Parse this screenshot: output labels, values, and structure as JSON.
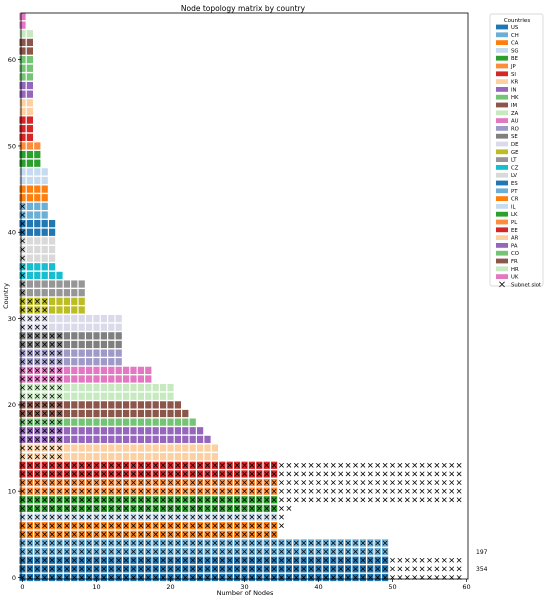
{
  "chart_data": {
    "type": "heatmap",
    "title": "Node topology matrix by country",
    "xlabel": "Number of Nodes",
    "ylabel": "Country",
    "xlim": [
      0,
      60
    ],
    "ylim": [
      0,
      65
    ],
    "xticks": [
      0,
      10,
      20,
      30,
      40,
      50,
      60
    ],
    "yticks": [
      0,
      10,
      20,
      30,
      40,
      50,
      60
    ],
    "grid": false,
    "legend": {
      "title": "Countries",
      "placement": "outside-right",
      "marker_label": "Subnet slot",
      "countries": [
        {
          "name": "US",
          "color": "#1f77b4"
        },
        {
          "name": "CH",
          "color": "#6baed6"
        },
        {
          "name": "CA",
          "color": "#ff7f0e"
        },
        {
          "name": "SG",
          "color": "#c6dbef"
        },
        {
          "name": "BE",
          "color": "#2ca02c"
        },
        {
          "name": "JP",
          "color": "#fd8d3c"
        },
        {
          "name": "SI",
          "color": "#d62728"
        },
        {
          "name": "KR",
          "color": "#fdd0a2"
        },
        {
          "name": "IN",
          "color": "#9467bd"
        },
        {
          "name": "HK",
          "color": "#74c476"
        },
        {
          "name": "IM",
          "color": "#8c564b"
        },
        {
          "name": "ZA",
          "color": "#c7e9c0"
        },
        {
          "name": "AU",
          "color": "#e377c2"
        },
        {
          "name": "RO",
          "color": "#9e9ac8"
        },
        {
          "name": "SE",
          "color": "#7f7f7f"
        },
        {
          "name": "DE",
          "color": "#dadaeb"
        },
        {
          "name": "GE",
          "color": "#bcbd22"
        },
        {
          "name": "LT",
          "color": "#969696"
        },
        {
          "name": "CZ",
          "color": "#17becf"
        },
        {
          "name": "LV",
          "color": "#d9d9d9"
        },
        {
          "name": "ES",
          "color": "#1f77b4"
        },
        {
          "name": "PT",
          "color": "#6baed6"
        },
        {
          "name": "CR",
          "color": "#ff7f0e"
        },
        {
          "name": "IL",
          "color": "#c6dbef"
        },
        {
          "name": "LK",
          "color": "#2ca02c"
        },
        {
          "name": "PL",
          "color": "#fd8d3c"
        },
        {
          "name": "EE",
          "color": "#d62728"
        },
        {
          "name": "AR",
          "color": "#fdd0a2"
        },
        {
          "name": "PA",
          "color": "#9467bd"
        },
        {
          "name": "CO",
          "color": "#74c476"
        },
        {
          "name": "FR",
          "color": "#8c564b"
        },
        {
          "name": "HR",
          "color": "#c7e9c0"
        },
        {
          "name": "UK",
          "color": "#e377c2"
        }
      ]
    },
    "rows": [
      {
        "y": 0,
        "color": "#1f77b4",
        "nodes": 50,
        "subnet": [
          0,
          60
        ]
      },
      {
        "y": 1,
        "color": "#1f77b4",
        "nodes": 50,
        "subnet": [
          0,
          60
        ]
      },
      {
        "y": 2,
        "color": "#1f77b4",
        "nodes": 50,
        "subnet": [
          0,
          60
        ]
      },
      {
        "y": 3,
        "color": "#6baed6",
        "nodes": 50,
        "subnet": [
          0,
          50
        ]
      },
      {
        "y": 4,
        "color": "#6baed6",
        "nodes": 50,
        "subnet": [
          0,
          50
        ]
      },
      {
        "y": 5,
        "color": "#ff7f0e",
        "nodes": 35,
        "subnet": [
          0,
          35
        ]
      },
      {
        "y": 6,
        "color": "#ff7f0e",
        "nodes": 35,
        "subnet": [
          0,
          36
        ]
      },
      {
        "y": 7,
        "color": "#c6dbef",
        "nodes": 35,
        "subnet": [
          0,
          36
        ]
      },
      {
        "y": 8,
        "color": "#2ca02c",
        "nodes": 35,
        "subnet": [
          0,
          37
        ]
      },
      {
        "y": 9,
        "color": "#2ca02c",
        "nodes": 35,
        "subnet": [
          0,
          60
        ]
      },
      {
        "y": 10,
        "color": "#fd8d3c",
        "nodes": 35,
        "subnet": [
          0,
          60
        ]
      },
      {
        "y": 11,
        "color": "#fd8d3c",
        "nodes": 35,
        "subnet": [
          0,
          60
        ]
      },
      {
        "y": 12,
        "color": "#d62728",
        "nodes": 35,
        "subnet": [
          0,
          60
        ]
      },
      {
        "y": 13,
        "color": "#d62728",
        "nodes": 35,
        "subnet": [
          0,
          60
        ]
      },
      {
        "y": 14,
        "color": "#fdd0a2",
        "nodes": 27,
        "subnet": [
          0,
          6
        ]
      },
      {
        "y": 15,
        "color": "#fdd0a2",
        "nodes": 27,
        "subnet": [
          0,
          6
        ]
      },
      {
        "y": 16,
        "color": "#9467bd",
        "nodes": 26,
        "subnet": [
          0,
          6
        ]
      },
      {
        "y": 17,
        "color": "#9467bd",
        "nodes": 25,
        "subnet": [
          0,
          6
        ]
      },
      {
        "y": 18,
        "color": "#74c476",
        "nodes": 24,
        "subnet": [
          0,
          6
        ]
      },
      {
        "y": 19,
        "color": "#8c564b",
        "nodes": 23,
        "subnet": [
          0,
          6
        ]
      },
      {
        "y": 20,
        "color": "#8c564b",
        "nodes": 22,
        "subnet": [
          0,
          6
        ]
      },
      {
        "y": 21,
        "color": "#c7e9c0",
        "nodes": 21,
        "subnet": [
          0,
          6
        ]
      },
      {
        "y": 22,
        "color": "#c7e9c0",
        "nodes": 21,
        "subnet": [
          0,
          6
        ]
      },
      {
        "y": 23,
        "color": "#e377c2",
        "nodes": 18,
        "subnet": [
          0,
          6
        ]
      },
      {
        "y": 24,
        "color": "#e377c2",
        "nodes": 18,
        "subnet": [
          0,
          6
        ]
      },
      {
        "y": 25,
        "color": "#9e9ac8",
        "nodes": 14,
        "subnet": [
          0,
          6
        ]
      },
      {
        "y": 26,
        "color": "#9e9ac8",
        "nodes": 14,
        "subnet": [
          0,
          6
        ]
      },
      {
        "y": 27,
        "color": "#7f7f7f",
        "nodes": 14,
        "subnet": [
          0,
          6
        ]
      },
      {
        "y": 28,
        "color": "#7f7f7f",
        "nodes": 14,
        "subnet": [
          0,
          6
        ]
      },
      {
        "y": 29,
        "color": "#dadaeb",
        "nodes": 14,
        "subnet": [
          0,
          4
        ]
      },
      {
        "y": 30,
        "color": "#dadaeb",
        "nodes": 14,
        "subnet": [
          0,
          4
        ]
      },
      {
        "y": 31,
        "color": "#bcbd22",
        "nodes": 9,
        "subnet": [
          0,
          4
        ]
      },
      {
        "y": 32,
        "color": "#bcbd22",
        "nodes": 9,
        "subnet": [
          0,
          4
        ]
      },
      {
        "y": 33,
        "color": "#969696",
        "nodes": 9,
        "subnet": [
          0,
          1
        ]
      },
      {
        "y": 34,
        "color": "#969696",
        "nodes": 9,
        "subnet": [
          0,
          1
        ]
      },
      {
        "y": 35,
        "color": "#17becf",
        "nodes": 6,
        "subnet": [
          0,
          1
        ]
      },
      {
        "y": 36,
        "color": "#17becf",
        "nodes": 5,
        "subnet": [
          0,
          1
        ]
      },
      {
        "y": 37,
        "color": "#d9d9d9",
        "nodes": 5,
        "subnet": [
          0,
          1
        ]
      },
      {
        "y": 38,
        "color": "#d9d9d9",
        "nodes": 5,
        "subnet": [
          0,
          1
        ]
      },
      {
        "y": 39,
        "color": "#d9d9d9",
        "nodes": 5,
        "subnet": [
          0,
          1
        ]
      },
      {
        "y": 40,
        "color": "#1f77b4",
        "nodes": 5,
        "subnet": [
          0,
          1
        ]
      },
      {
        "y": 41,
        "color": "#1f77b4",
        "nodes": 5,
        "subnet": [
          0,
          1
        ]
      },
      {
        "y": 42,
        "color": "#6baed6",
        "nodes": 4,
        "subnet": [
          0,
          1
        ]
      },
      {
        "y": 43,
        "color": "#6baed6",
        "nodes": 4,
        "subnet": [
          0,
          1
        ]
      },
      {
        "y": 44,
        "color": "#ff7f0e",
        "nodes": 4,
        "subnet": [
          0,
          0
        ]
      },
      {
        "y": 45,
        "color": "#ff7f0e",
        "nodes": 4,
        "subnet": [
          0,
          0
        ]
      },
      {
        "y": 46,
        "color": "#c6dbef",
        "nodes": 4,
        "subnet": [
          0,
          0
        ]
      },
      {
        "y": 47,
        "color": "#c6dbef",
        "nodes": 4,
        "subnet": [
          0,
          0
        ]
      },
      {
        "y": 48,
        "color": "#2ca02c",
        "nodes": 3,
        "subnet": [
          0,
          0
        ]
      },
      {
        "y": 49,
        "color": "#2ca02c",
        "nodes": 3,
        "subnet": [
          0,
          0
        ]
      },
      {
        "y": 50,
        "color": "#fd8d3c",
        "nodes": 3,
        "subnet": [
          0,
          0
        ]
      },
      {
        "y": 51,
        "color": "#d62728",
        "nodes": 2,
        "subnet": [
          0,
          0
        ]
      },
      {
        "y": 52,
        "color": "#d62728",
        "nodes": 2,
        "subnet": [
          0,
          0
        ]
      },
      {
        "y": 53,
        "color": "#d62728",
        "nodes": 2,
        "subnet": [
          0,
          0
        ]
      },
      {
        "y": 54,
        "color": "#fdd0a2",
        "nodes": 2,
        "subnet": [
          0,
          0
        ]
      },
      {
        "y": 55,
        "color": "#fdd0a2",
        "nodes": 2,
        "subnet": [
          0,
          0
        ]
      },
      {
        "y": 56,
        "color": "#9467bd",
        "nodes": 2,
        "subnet": [
          0,
          0
        ]
      },
      {
        "y": 57,
        "color": "#9467bd",
        "nodes": 2,
        "subnet": [
          0,
          0
        ]
      },
      {
        "y": 58,
        "color": "#74c476",
        "nodes": 2,
        "subnet": [
          0,
          0
        ]
      },
      {
        "y": 59,
        "color": "#74c476",
        "nodes": 2,
        "subnet": [
          0,
          0
        ]
      },
      {
        "y": 60,
        "color": "#74c476",
        "nodes": 2,
        "subnet": [
          0,
          0
        ]
      },
      {
        "y": 61,
        "color": "#8c564b",
        "nodes": 2,
        "subnet": [
          0,
          0
        ]
      },
      {
        "y": 62,
        "color": "#8c564b",
        "nodes": 2,
        "subnet": [
          0,
          0
        ]
      },
      {
        "y": 63,
        "color": "#c7e9c0",
        "nodes": 2,
        "subnet": [
          0,
          0
        ]
      },
      {
        "y": 64,
        "color": "#e377c2",
        "nodes": 1,
        "subnet": [
          0,
          0
        ]
      },
      {
        "y": 65,
        "color": "#e377c2",
        "nodes": 1,
        "subnet": [
          0,
          0
        ]
      }
    ],
    "annotations": [
      {
        "text": "197",
        "y": 3
      },
      {
        "text": "354",
        "y": 1
      }
    ]
  }
}
